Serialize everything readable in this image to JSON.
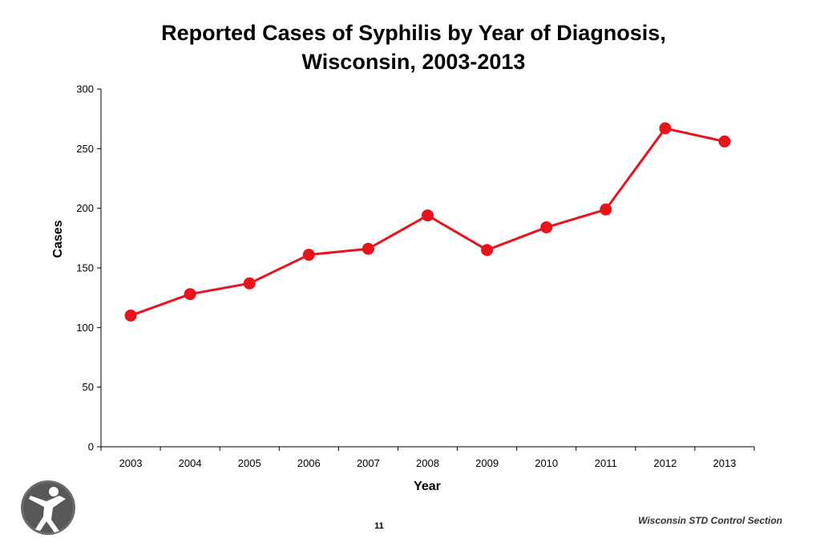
{
  "chart_data": {
    "type": "line",
    "title_lines": [
      "Reported Cases of Syphilis by Year of Diagnosis,",
      "Wisconsin, 2003-2013"
    ],
    "xlabel": "Year",
    "ylabel": "Cases",
    "categories": [
      "2003",
      "2004",
      "2005",
      "2006",
      "2007",
      "2008",
      "2009",
      "2010",
      "2011",
      "2012",
      "2013"
    ],
    "series": [
      {
        "values": [
          110,
          128,
          137,
          161,
          166,
          194,
          165,
          184,
          199,
          267,
          256
        ],
        "color": "#e8131b"
      }
    ],
    "ylim": [
      0,
      300
    ],
    "yticks": [
      "0",
      "50",
      "100",
      "150",
      "200",
      "250",
      "300"
    ],
    "grid": false,
    "legend": "none"
  },
  "footer": {
    "source": "Wisconsin STD Control Section",
    "page_number": "11",
    "logo_icon": "person-figure-logo-icon"
  }
}
